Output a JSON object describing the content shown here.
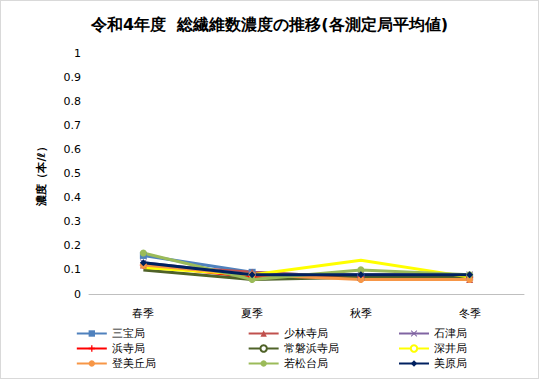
{
  "chart_data": {
    "type": "line",
    "title": "令和4年度  総繊維数濃度の推移(各測定局平均値)",
    "y_label": "濃度（本/ℓ）",
    "categories": [
      "春季",
      "夏季",
      "秋季",
      "冬季"
    ],
    "ylim": [
      0,
      1
    ],
    "yticks": [
      0,
      0.1,
      0.2,
      0.3,
      0.4,
      0.5,
      0.6,
      0.7,
      0.8,
      0.9,
      1
    ],
    "grid": false,
    "legend": "bottom",
    "series": [
      {
        "name": "三宝局",
        "color": "#4F81BD",
        "marker": "square",
        "values": [
          0.16,
          0.09,
          0.07,
          0.07
        ]
      },
      {
        "name": "少林寺局",
        "color": "#C0504D",
        "marker": "triangle",
        "values": [
          0.12,
          0.09,
          0.07,
          0.06
        ]
      },
      {
        "name": "石津局",
        "color": "#8064A2",
        "marker": "x",
        "values": [
          0.13,
          0.08,
          0.08,
          0.08
        ]
      },
      {
        "name": "浜寺局",
        "color": "#FF0000",
        "marker": "plus",
        "values": [
          0.12,
          0.07,
          0.07,
          0.07
        ]
      },
      {
        "name": "常磐浜寺局",
        "color": "#4F6228",
        "marker": "none",
        "values": [
          0.1,
          0.06,
          0.07,
          0.07
        ]
      },
      {
        "name": "深井局",
        "color": "#FFFF00",
        "marker": "none",
        "values": [
          0.11,
          0.08,
          0.14,
          0.07
        ]
      },
      {
        "name": "登美丘局",
        "color": "#F79646",
        "marker": "circle",
        "values": [
          0.12,
          0.08,
          0.06,
          0.06
        ]
      },
      {
        "name": "若松台局",
        "color": "#9BBB59",
        "marker": "circle",
        "values": [
          0.17,
          0.06,
          0.1,
          0.08
        ]
      },
      {
        "name": "美原局",
        "color": "#002060",
        "marker": "diamond",
        "values": [
          0.13,
          0.08,
          0.08,
          0.08
        ]
      }
    ]
  }
}
